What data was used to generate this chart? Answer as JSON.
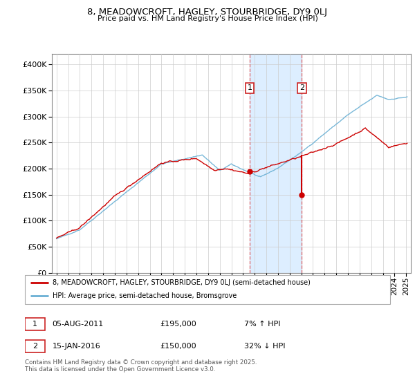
{
  "title": "8, MEADOWCROFT, HAGLEY, STOURBRIDGE, DY9 0LJ",
  "subtitle": "Price paid vs. HM Land Registry's House Price Index (HPI)",
  "legend_line1": "8, MEADOWCROFT, HAGLEY, STOURBRIDGE, DY9 0LJ (semi-detached house)",
  "legend_line2": "HPI: Average price, semi-detached house, Bromsgrove",
  "transaction1_date": "05-AUG-2011",
  "transaction1_price_label": "£195,000",
  "transaction1_hpi": "7% ↑ HPI",
  "transaction2_date": "15-JAN-2016",
  "transaction2_price_label": "£150,000",
  "transaction2_hpi": "32% ↓ HPI",
  "footer": "Contains HM Land Registry data © Crown copyright and database right 2025.\nThis data is licensed under the Open Government Licence v3.0.",
  "house_color": "#cc0000",
  "hpi_color": "#6ab0d4",
  "shade_color": "#ddeeff",
  "transaction1_x": 2011.583,
  "transaction1_price": 195000,
  "transaction2_x": 2016.042,
  "transaction2_price": 150000,
  "ylim": [
    0,
    420000
  ],
  "yticks": [
    0,
    50000,
    100000,
    150000,
    200000,
    250000,
    300000,
    350000,
    400000
  ],
  "xlim_left": 1994.6,
  "xlim_right": 2025.4
}
